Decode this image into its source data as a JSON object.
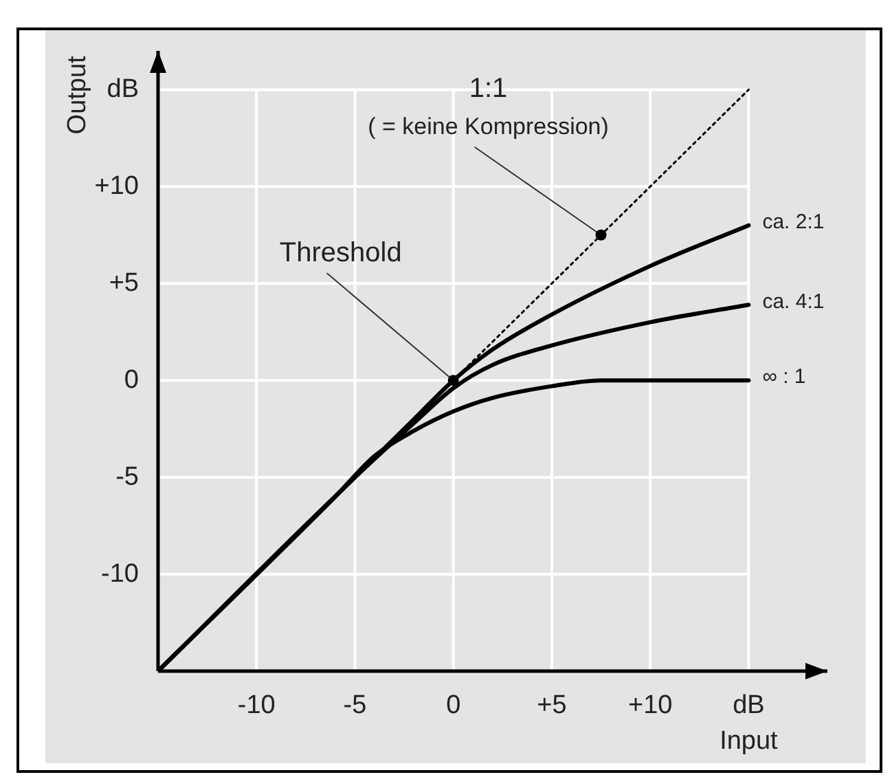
{
  "chart_data": {
    "type": "line",
    "xlabel": "Input",
    "ylabel": "Output",
    "xlim": [
      -15,
      19
    ],
    "ylim": [
      -15,
      17
    ],
    "xticks": [
      -10,
      -5,
      0,
      {
        "value": 5,
        "label": "+5"
      },
      {
        "value": 10,
        "label": "+10"
      },
      {
        "value": 15,
        "label": "dB"
      }
    ],
    "yticks": [
      -10,
      -5,
      0,
      {
        "value": 5,
        "label": "+5"
      },
      {
        "value": 10,
        "label": "+10"
      },
      {
        "value": 15,
        "label": "dB"
      }
    ],
    "grid": true,
    "legend": false,
    "series": [
      {
        "color": "#000000",
        "line_style": "dotted",
        "x": [
          0,
          15
        ],
        "values": [
          0,
          15
        ]
      },
      {
        "name": "ca. 2:1",
        "color": "#000000",
        "line_style": "solid",
        "x": [
          -15,
          -5,
          -2,
          0,
          2,
          5,
          10,
          15
        ],
        "values": [
          -15,
          -5,
          -2,
          0,
          1.6,
          3.4,
          5.9,
          8
        ]
      },
      {
        "name": "ca. 4:1",
        "color": "#000000",
        "line_style": "solid",
        "x": [
          -15,
          -5,
          -2,
          0,
          2,
          5,
          10,
          15
        ],
        "values": [
          -15,
          -5,
          -2.2,
          -0.4,
          0.8,
          1.8,
          3,
          3.9
        ]
      },
      {
        "name": "∞ : 1",
        "color": "#000000",
        "line_style": "solid",
        "x": [
          -15,
          -6,
          -4,
          -2,
          0,
          2,
          5,
          7.5,
          15
        ],
        "values": [
          -15,
          -6,
          -3.9,
          -2.6,
          -1.6,
          -0.9,
          -0.3,
          0,
          0
        ]
      }
    ],
    "annotations": [
      {
        "text": "1:1\n( = keine Kompression)",
        "x": 7.5,
        "y": 7.5
      },
      {
        "text": "Threshold",
        "x": 0,
        "y": 0
      }
    ]
  }
}
